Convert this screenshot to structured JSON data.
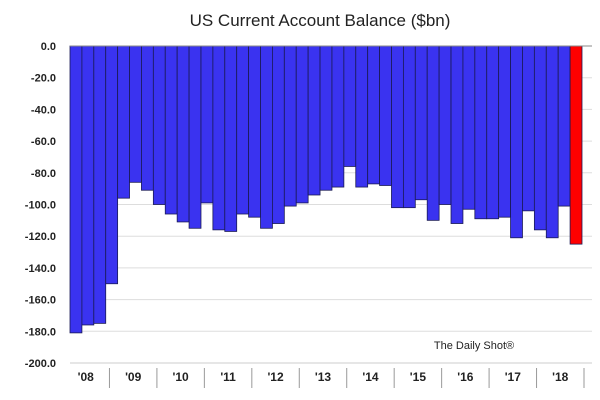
{
  "chart_data": {
    "type": "bar",
    "title": "US Current Account Balance ($bn)",
    "source": "The Daily Shot®",
    "ylim": [
      -200,
      0
    ],
    "yticks": [
      "0.0",
      "-20.0",
      "-40.0",
      "-60.0",
      "-80.0",
      "-100.0",
      "-120.0",
      "-140.0",
      "-160.0",
      "-180.0",
      "-200.0"
    ],
    "year_labels": [
      "'08",
      "'09",
      "'10",
      "'11",
      "'12",
      "'13",
      "'14",
      "'15",
      "'16",
      "'17",
      "'18"
    ],
    "grid": true,
    "colors": {
      "bars": "#3a33f0",
      "highlight": "#ff0000",
      "grid": "#dddddd"
    },
    "values": [
      -181,
      -176,
      -175,
      -150,
      -96,
      -86,
      -91,
      -100,
      -106,
      -111,
      -115,
      -99,
      -116,
      -117,
      -106,
      -108,
      -115,
      -112,
      -101,
      -99,
      -94,
      -91,
      -89,
      -76,
      -89,
      -87,
      -88,
      -102,
      -102,
      -97,
      -110,
      -100,
      -112,
      -103,
      -109,
      -109,
      -108,
      -121,
      -104,
      -116,
      -121,
      -101,
      -125
    ],
    "highlight_last": true
  }
}
